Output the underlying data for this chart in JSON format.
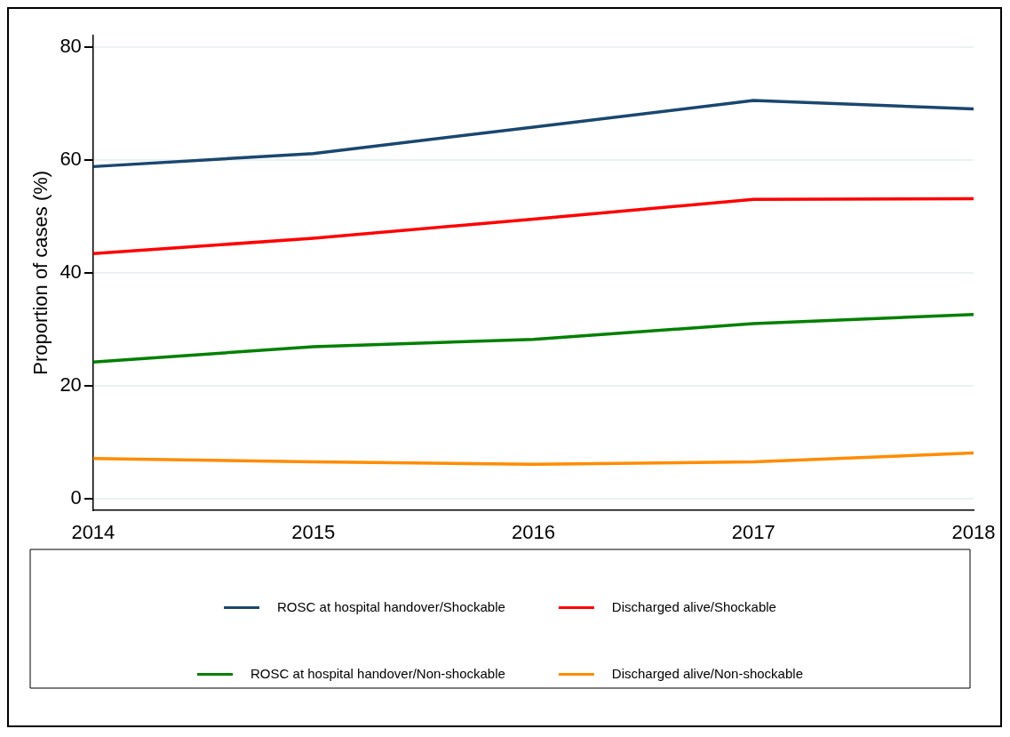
{
  "chart_data": {
    "type": "line",
    "ylabel": "Proportion of cases (%)",
    "categories": [
      "2014",
      "2015",
      "2016",
      "2017",
      "2018"
    ],
    "series": [
      {
        "name": "ROSC at hospital handover/Shockable",
        "color": "#1a476f",
        "values": [
          58.8,
          61.1,
          65.8,
          70.5,
          69.0
        ]
      },
      {
        "name": "Discharged alive/Shockable",
        "color": "#ff0000",
        "values": [
          43.4,
          46.1,
          49.5,
          53.0,
          53.1
        ]
      },
      {
        "name": "ROSC at hospital handover/Non-shockable",
        "color": "#008000",
        "values": [
          24.2,
          26.9,
          28.2,
          31.0,
          32.6
        ]
      },
      {
        "name": "Discharged alive/Non-shockable",
        "color": "#ff8c00",
        "values": [
          7.1,
          6.5,
          6.1,
          6.5,
          8.1
        ]
      }
    ],
    "ylim": [
      -2,
      82
    ],
    "yticks": [
      0,
      20,
      40,
      60,
      80
    ],
    "grid": "y",
    "legend": "bottom",
    "marker": "none",
    "line_style": "solid"
  }
}
